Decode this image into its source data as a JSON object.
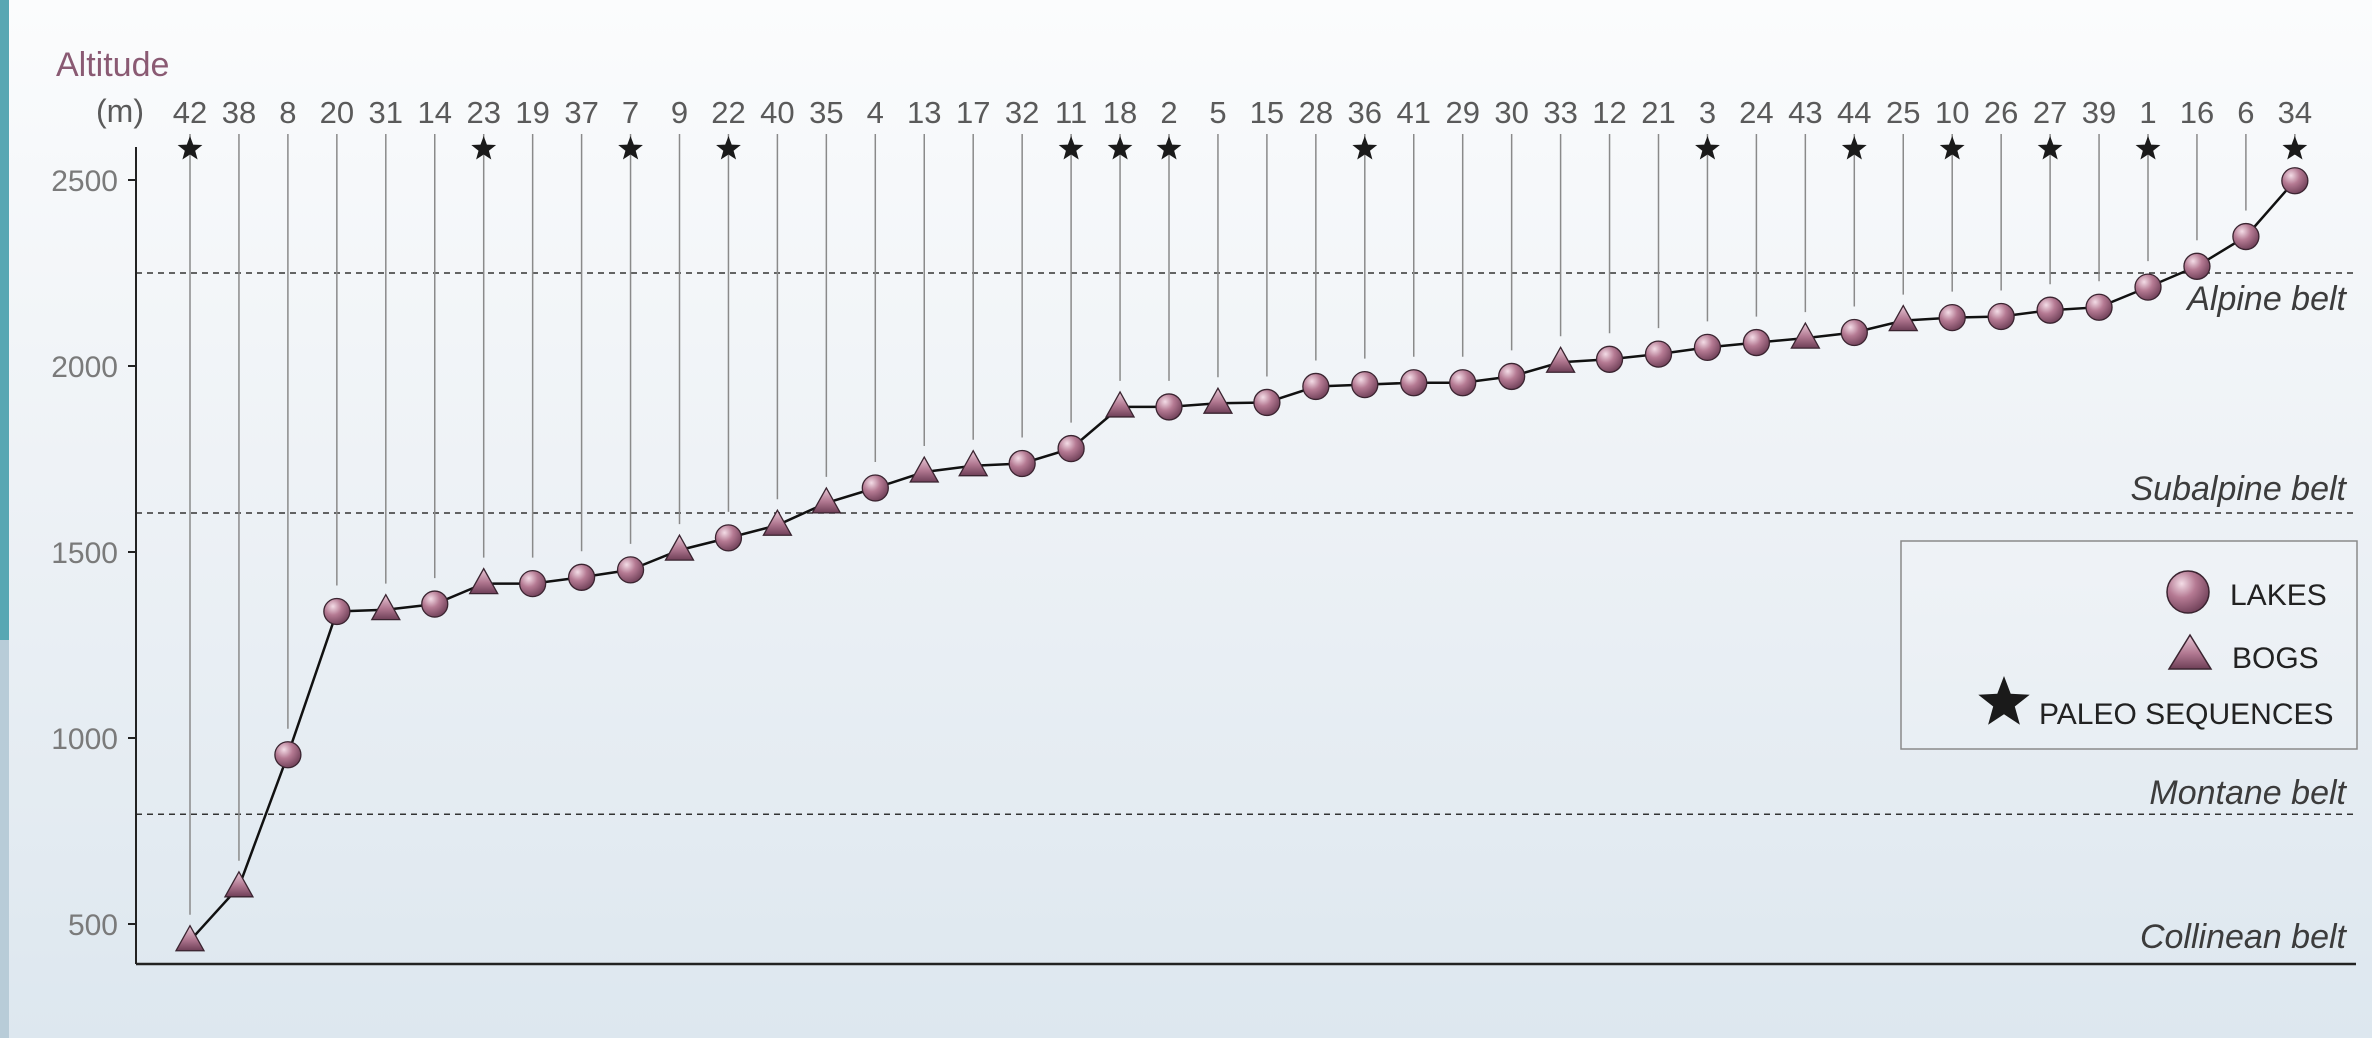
{
  "chart_data": {
    "type": "line",
    "ylabel": "Altitude",
    "yunit": "(m)",
    "ylim": [
      450,
      2600
    ],
    "yticks": [
      500,
      1000,
      1500,
      2000,
      2500
    ],
    "belts": [
      {
        "name": "Alpine belt",
        "boundary": 2250
      },
      {
        "name": "Subalpine belt",
        "boundary": 1605
      },
      {
        "name": "Montane belt",
        "boundary": 795
      },
      {
        "name": "Collinean belt",
        "boundary": null
      }
    ],
    "legend": {
      "lakes": "LAKES",
      "bogs": "BOGS",
      "paleo": "PALEO SEQUENCES"
    },
    "sites": [
      {
        "id": "42",
        "type": "bog",
        "alt": 455,
        "paleo": true
      },
      {
        "id": "38",
        "type": "bog",
        "alt": 600,
        "paleo": false
      },
      {
        "id": "8",
        "type": "lake",
        "alt": 955,
        "paleo": false
      },
      {
        "id": "20",
        "type": "lake",
        "alt": 1340,
        "paleo": false
      },
      {
        "id": "31",
        "type": "bog",
        "alt": 1345,
        "paleo": false
      },
      {
        "id": "14",
        "type": "lake",
        "alt": 1360,
        "paleo": false
      },
      {
        "id": "23",
        "type": "bog",
        "alt": 1415,
        "paleo": true
      },
      {
        "id": "19",
        "type": "lake",
        "alt": 1415,
        "paleo": false
      },
      {
        "id": "37",
        "type": "lake",
        "alt": 1432,
        "paleo": false
      },
      {
        "id": "7",
        "type": "lake",
        "alt": 1452,
        "paleo": true
      },
      {
        "id": "9",
        "type": "bog",
        "alt": 1505,
        "paleo": false
      },
      {
        "id": "22",
        "type": "lake",
        "alt": 1538,
        "paleo": true
      },
      {
        "id": "40",
        "type": "bog",
        "alt": 1572,
        "paleo": false
      },
      {
        "id": "35",
        "type": "bog",
        "alt": 1632,
        "paleo": false
      },
      {
        "id": "4",
        "type": "lake",
        "alt": 1672,
        "paleo": false
      },
      {
        "id": "13",
        "type": "bog",
        "alt": 1715,
        "paleo": false
      },
      {
        "id": "17",
        "type": "bog",
        "alt": 1732,
        "paleo": false
      },
      {
        "id": "32",
        "type": "lake",
        "alt": 1738,
        "paleo": false
      },
      {
        "id": "11",
        "type": "lake",
        "alt": 1778,
        "paleo": true
      },
      {
        "id": "18",
        "type": "bog",
        "alt": 1890,
        "paleo": true
      },
      {
        "id": "2",
        "type": "lake",
        "alt": 1890,
        "paleo": true
      },
      {
        "id": "5",
        "type": "bog",
        "alt": 1900,
        "paleo": false
      },
      {
        "id": "15",
        "type": "lake",
        "alt": 1902,
        "paleo": false
      },
      {
        "id": "28",
        "type": "lake",
        "alt": 1945,
        "paleo": false
      },
      {
        "id": "36",
        "type": "lake",
        "alt": 1950,
        "paleo": true
      },
      {
        "id": "41",
        "type": "lake",
        "alt": 1955,
        "paleo": false
      },
      {
        "id": "29",
        "type": "lake",
        "alt": 1955,
        "paleo": false
      },
      {
        "id": "30",
        "type": "lake",
        "alt": 1972,
        "paleo": false
      },
      {
        "id": "33",
        "type": "bog",
        "alt": 2010,
        "paleo": false
      },
      {
        "id": "12",
        "type": "lake",
        "alt": 2018,
        "paleo": false
      },
      {
        "id": "21",
        "type": "lake",
        "alt": 2032,
        "paleo": false
      },
      {
        "id": "3",
        "type": "lake",
        "alt": 2050,
        "paleo": true
      },
      {
        "id": "24",
        "type": "lake",
        "alt": 2063,
        "paleo": false
      },
      {
        "id": "43",
        "type": "bog",
        "alt": 2075,
        "paleo": false
      },
      {
        "id": "44",
        "type": "lake",
        "alt": 2090,
        "paleo": true
      },
      {
        "id": "25",
        "type": "bog",
        "alt": 2122,
        "paleo": false
      },
      {
        "id": "10",
        "type": "lake",
        "alt": 2130,
        "paleo": true
      },
      {
        "id": "26",
        "type": "lake",
        "alt": 2133,
        "paleo": false
      },
      {
        "id": "27",
        "type": "lake",
        "alt": 2150,
        "paleo": true
      },
      {
        "id": "39",
        "type": "lake",
        "alt": 2158,
        "paleo": false
      },
      {
        "id": "1",
        "type": "lake",
        "alt": 2212,
        "paleo": true
      },
      {
        "id": "16",
        "type": "lake",
        "alt": 2268,
        "paleo": false
      },
      {
        "id": "6",
        "type": "lake",
        "alt": 2348,
        "paleo": false
      },
      {
        "id": "34",
        "type": "lake",
        "alt": 2498,
        "paleo": true
      }
    ],
    "colors": {
      "marker_fill": "#b57a93",
      "marker_fill_dark": "#7a4660",
      "marker_stroke": "#3a2430",
      "line": "#111111",
      "guide": "#8a8a8a",
      "axis": "#222222",
      "belt_line": "#333333",
      "legend_border": "#8a8a8a"
    }
  }
}
